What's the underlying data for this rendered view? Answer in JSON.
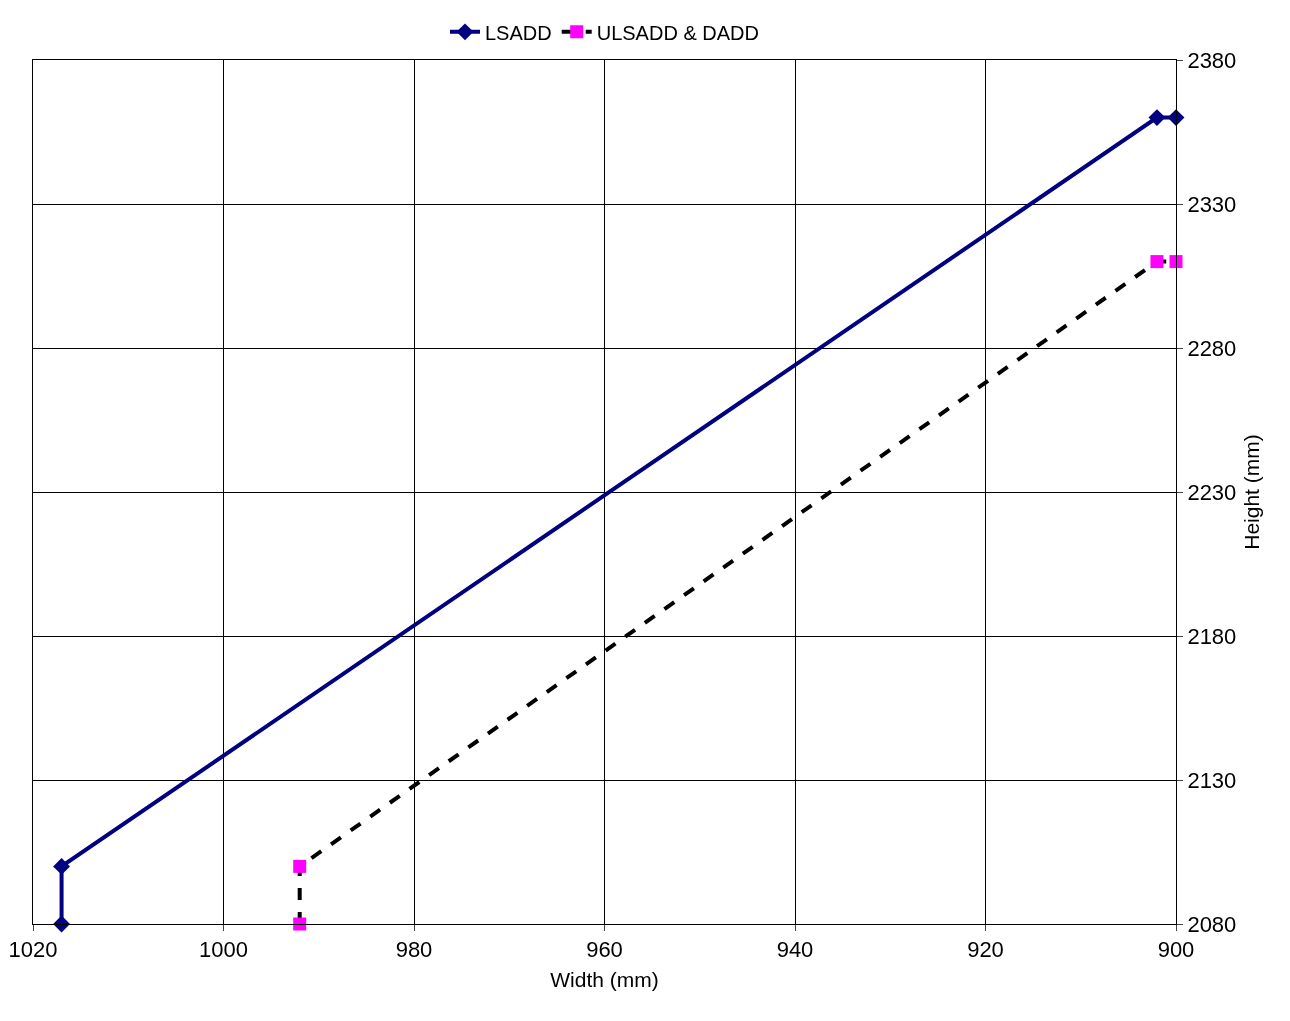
{
  "chart_data": {
    "type": "line",
    "xlabel": "Width (mm)",
    "ylabel": "Height (mm)",
    "xlim": [
      1020,
      900
    ],
    "xticks": [
      1020,
      1000,
      980,
      960,
      940,
      920,
      900
    ],
    "ylim": [
      2080,
      2380
    ],
    "yticks": [
      2080,
      2130,
      2180,
      2230,
      2280,
      2330,
      2380
    ],
    "grid": true,
    "legend": "top",
    "series": [
      {
        "name": "LSADD",
        "color": "#000080",
        "x": [
          1017,
          1017,
          902,
          900
        ],
        "values": [
          2080,
          2100,
          2360,
          2360
        ],
        "marker": "diamond",
        "line_style": "solid"
      },
      {
        "name": "ULSADD & DADD",
        "color": "#000000",
        "colors": [
          "#ff00ff",
          "#ff00ff",
          "#ff00ff",
          "#ff00ff"
        ],
        "x": [
          992,
          992,
          902,
          900
        ],
        "values": [
          2080,
          2100,
          2310,
          2310
        ],
        "marker": "square",
        "line_style": "dashed"
      }
    ]
  }
}
